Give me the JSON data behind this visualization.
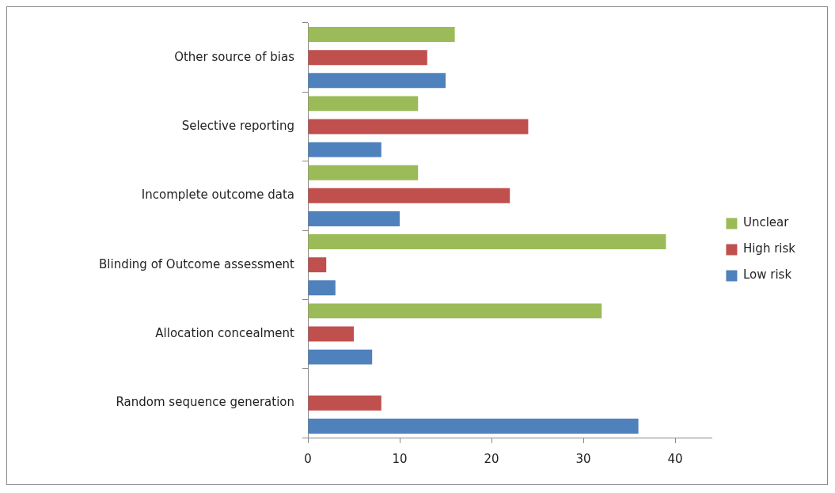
{
  "chart_data": {
    "type": "bar",
    "orientation": "horizontal",
    "categories": [
      "Other source of bias",
      "Selective reporting",
      "Incomplete outcome data",
      "Blinding of Outcome assessment",
      "Allocation concealment",
      "Random sequence generation"
    ],
    "series": [
      {
        "name": "Unclear",
        "color": "#9bbb59",
        "values": [
          16,
          12,
          12,
          39,
          32,
          0
        ]
      },
      {
        "name": "High risk",
        "color": "#c0504d",
        "values": [
          13,
          24,
          22,
          2,
          5,
          8
        ]
      },
      {
        "name": "Low risk",
        "color": "#4f81bd",
        "values": [
          15,
          8,
          10,
          3,
          7,
          36
        ]
      }
    ],
    "xlim": [
      0,
      44
    ],
    "xticks": [
      0,
      10,
      20,
      30,
      40
    ],
    "grid": false,
    "legend": "right"
  }
}
